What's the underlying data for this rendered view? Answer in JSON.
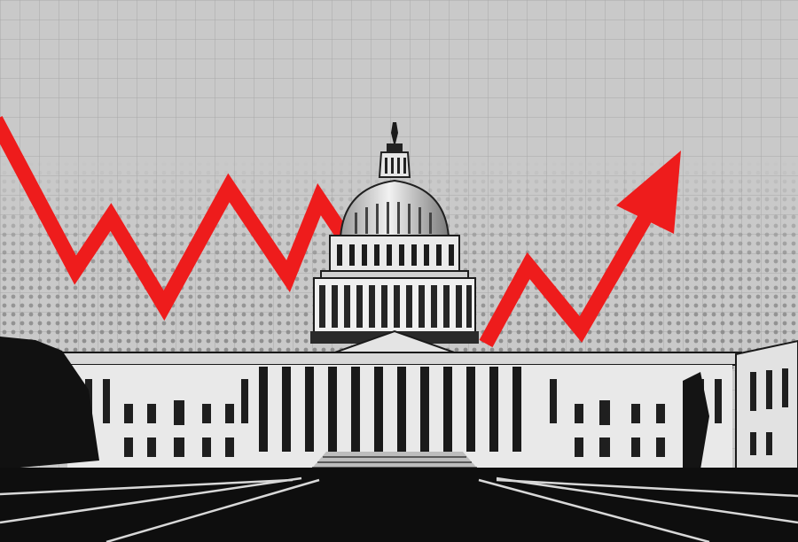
{
  "image": {
    "subject": "capitol-building-with-red-zigzag-arrow",
    "style": "black-white-halftone-collage",
    "colors": {
      "background": "#c9c9c9",
      "grid_line": "#a9a9a9",
      "halftone_dot": "#8a8a8a",
      "arrow": "#ee1c1c",
      "building_light": "#e9e9e9",
      "building_shadow": "#141414",
      "ground": "#0e0e0e",
      "ground_lines": "#d8d8d8"
    },
    "arrow_trend": "down-then-up",
    "icons": [
      "trend-arrow-icon"
    ]
  }
}
